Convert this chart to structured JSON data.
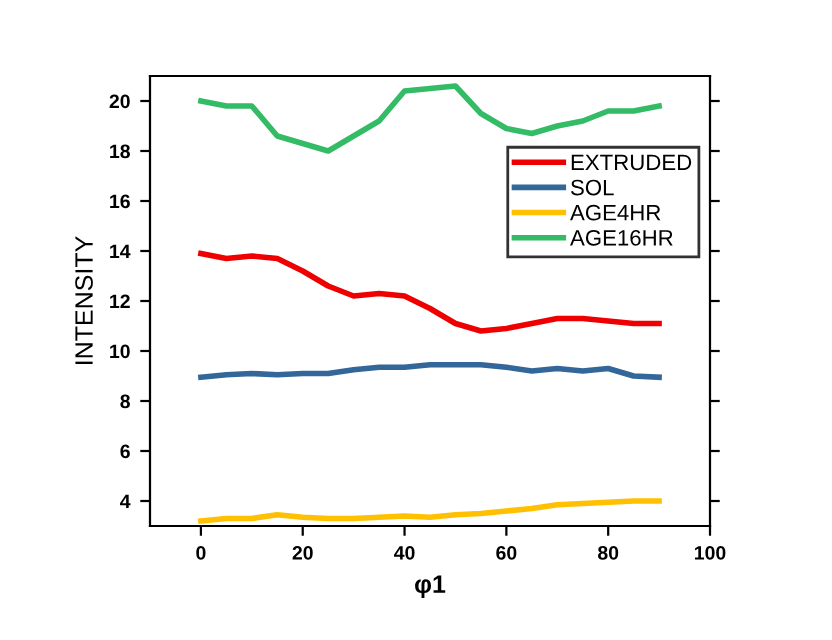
{
  "chart_data": {
    "type": "line",
    "xlabel": "φ1",
    "ylabel": "INTENSITY",
    "x": [
      0,
      5,
      10,
      15,
      20,
      25,
      30,
      35,
      40,
      45,
      50,
      55,
      60,
      65,
      70,
      75,
      80,
      85,
      90
    ],
    "series": [
      {
        "name": "EXTRUDED",
        "color": "#ee0000",
        "values": [
          13.9,
          13.7,
          13.8,
          13.7,
          13.2,
          12.6,
          12.2,
          12.3,
          12.2,
          11.7,
          11.1,
          10.8,
          10.9,
          11.1,
          11.3,
          11.3,
          11.2,
          11.1,
          11.1
        ]
      },
      {
        "name": "SOL",
        "color": "#336699",
        "values": [
          8.95,
          9.05,
          9.1,
          9.05,
          9.1,
          9.1,
          9.25,
          9.35,
          9.35,
          9.45,
          9.45,
          9.45,
          9.35,
          9.2,
          9.3,
          9.2,
          9.3,
          9.0,
          8.95
        ]
      },
      {
        "name": "AGE4HR",
        "color": "#ffc000",
        "values": [
          3.2,
          3.3,
          3.3,
          3.45,
          3.35,
          3.3,
          3.3,
          3.35,
          3.4,
          3.35,
          3.45,
          3.5,
          3.6,
          3.7,
          3.85,
          3.9,
          3.95,
          4.0,
          4.0
        ]
      },
      {
        "name": "AGE16HR",
        "color": "#33bb66",
        "values": [
          20.0,
          19.8,
          19.8,
          18.6,
          18.3,
          18.0,
          18.6,
          19.2,
          20.4,
          20.5,
          20.6,
          19.5,
          18.9,
          18.7,
          19.0,
          19.2,
          19.6,
          19.6,
          19.8
        ]
      }
    ],
    "xlim": [
      -10,
      100
    ],
    "ylim": [
      3,
      21
    ],
    "xticks": [
      0,
      20,
      40,
      60,
      80,
      100
    ],
    "yticks": [
      4,
      6,
      8,
      10,
      12,
      14,
      16,
      18,
      20
    ],
    "grid": false,
    "legend": "right",
    "marker": "none",
    "line_style": "solid"
  }
}
